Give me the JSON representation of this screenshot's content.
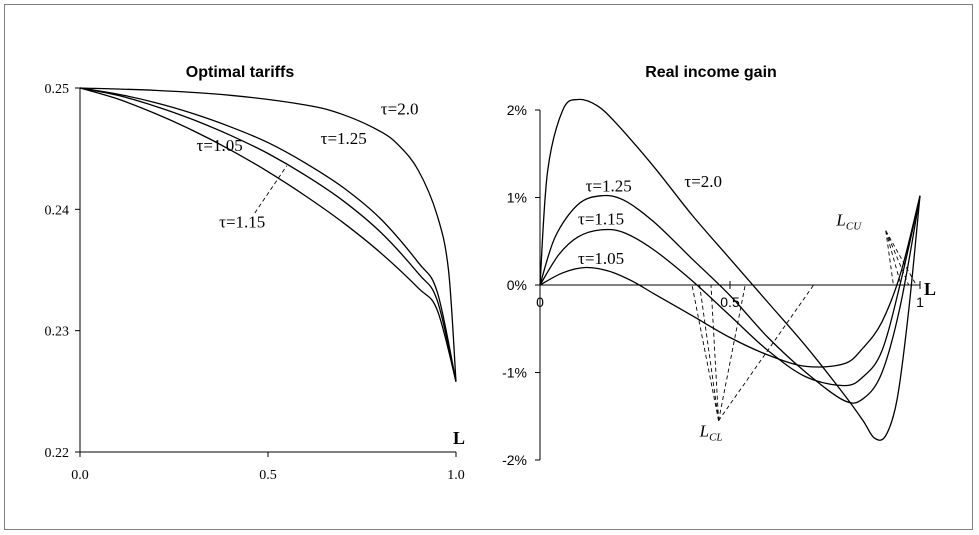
{
  "chart_data": [
    {
      "type": "line",
      "title": "Optimal tariffs",
      "xlabel": "L",
      "ylabel": "",
      "xlim": [
        0,
        1
      ],
      "ylim": [
        0.22,
        0.25
      ],
      "x_ticks": [
        "0.0",
        "0.5",
        "1.0"
      ],
      "y_ticks": [
        "0.22",
        "0.23",
        "0.24",
        "0.25"
      ],
      "series": [
        {
          "name": "τ=2.0",
          "x": [
            0,
            0.2,
            0.4,
            0.6,
            0.7,
            0.8,
            0.85,
            0.9,
            0.95,
            0.98,
            1.0
          ],
          "values": [
            0.25,
            0.2498,
            0.2494,
            0.2486,
            0.2478,
            0.2464,
            0.2452,
            0.2432,
            0.2395,
            0.235,
            0.2258
          ]
        },
        {
          "name": "τ=1.25",
          "x": [
            0,
            0.1,
            0.2,
            0.3,
            0.4,
            0.5,
            0.6,
            0.7,
            0.8,
            0.9,
            0.95,
            1.0
          ],
          "values": [
            0.25,
            0.2495,
            0.2488,
            0.2479,
            0.2468,
            0.2455,
            0.2438,
            0.2418,
            0.2392,
            0.2356,
            0.2332,
            0.2258
          ]
        },
        {
          "name": "τ=1.15",
          "x": [
            0,
            0.1,
            0.2,
            0.3,
            0.4,
            0.5,
            0.6,
            0.7,
            0.8,
            0.9,
            0.95,
            1.0
          ],
          "values": [
            0.25,
            0.2494,
            0.2485,
            0.2474,
            0.2461,
            0.2446,
            0.2428,
            0.2407,
            0.2381,
            0.2347,
            0.2325,
            0.2258
          ]
        },
        {
          "name": "τ=1.05",
          "x": [
            0,
            0.1,
            0.2,
            0.3,
            0.4,
            0.5,
            0.6,
            0.7,
            0.8,
            0.9,
            0.95,
            1.0
          ],
          "values": [
            0.25,
            0.2491,
            0.2479,
            0.2465,
            0.2449,
            0.2431,
            0.2411,
            0.2389,
            0.2364,
            0.2335,
            0.2317,
            0.2258
          ]
        }
      ]
    },
    {
      "type": "line",
      "title": "Real income gain",
      "xlabel": "L",
      "ylabel": "",
      "xlim": [
        0,
        1
      ],
      "ylim": [
        -2,
        2
      ],
      "x_ticks": [
        "0",
        "0.5",
        "1"
      ],
      "y_ticks": [
        "2%",
        "1%",
        "0%",
        "-1%",
        "-2%"
      ],
      "series": [
        {
          "name": "τ=2.0",
          "x": [
            0,
            0.02,
            0.06,
            0.1,
            0.15,
            0.2,
            0.3,
            0.4,
            0.5,
            0.6,
            0.7,
            0.8,
            0.85,
            0.88,
            0.91,
            0.94,
            0.97,
            1.0
          ],
          "values": [
            0,
            1.3,
            2.0,
            2.12,
            2.05,
            1.85,
            1.35,
            0.8,
            0.3,
            -0.2,
            -0.7,
            -1.25,
            -1.55,
            -1.75,
            -1.72,
            -1.3,
            -0.3,
            1.02
          ]
        },
        {
          "name": "τ=1.25",
          "x": [
            0,
            0.04,
            0.1,
            0.16,
            0.22,
            0.3,
            0.4,
            0.5,
            0.6,
            0.7,
            0.8,
            0.85,
            0.9,
            0.95,
            1.0
          ],
          "values": [
            0,
            0.55,
            0.92,
            1.02,
            0.97,
            0.72,
            0.3,
            -0.12,
            -0.6,
            -1.0,
            -1.32,
            -1.3,
            -1.0,
            -0.2,
            1.02
          ]
        },
        {
          "name": "τ=1.15",
          "x": [
            0,
            0.05,
            0.1,
            0.16,
            0.22,
            0.3,
            0.4,
            0.5,
            0.6,
            0.7,
            0.8,
            0.85,
            0.9,
            0.95,
            1.0
          ],
          "values": [
            0,
            0.35,
            0.55,
            0.63,
            0.6,
            0.4,
            0.05,
            -0.35,
            -0.75,
            -1.05,
            -1.15,
            -1.05,
            -0.75,
            0.05,
            1.02
          ]
        },
        {
          "name": "τ=1.05",
          "x": [
            0,
            0.06,
            0.12,
            0.18,
            0.24,
            0.3,
            0.4,
            0.5,
            0.6,
            0.7,
            0.8,
            0.85,
            0.9,
            0.95,
            1.0
          ],
          "values": [
            0,
            0.14,
            0.2,
            0.16,
            0.05,
            -0.1,
            -0.35,
            -0.6,
            -0.8,
            -0.93,
            -0.9,
            -0.72,
            -0.42,
            0.15,
            1.02
          ]
        }
      ],
      "annotations": [
        {
          "text": "L",
          "subscript": "CL",
          "points_at_x": [
            0.4,
            0.42,
            0.45,
            0.54,
            0.72
          ]
        },
        {
          "text": "L",
          "subscript": "CU",
          "points_at_x": [
            0.93,
            0.95,
            0.97,
            0.99
          ]
        }
      ]
    }
  ]
}
